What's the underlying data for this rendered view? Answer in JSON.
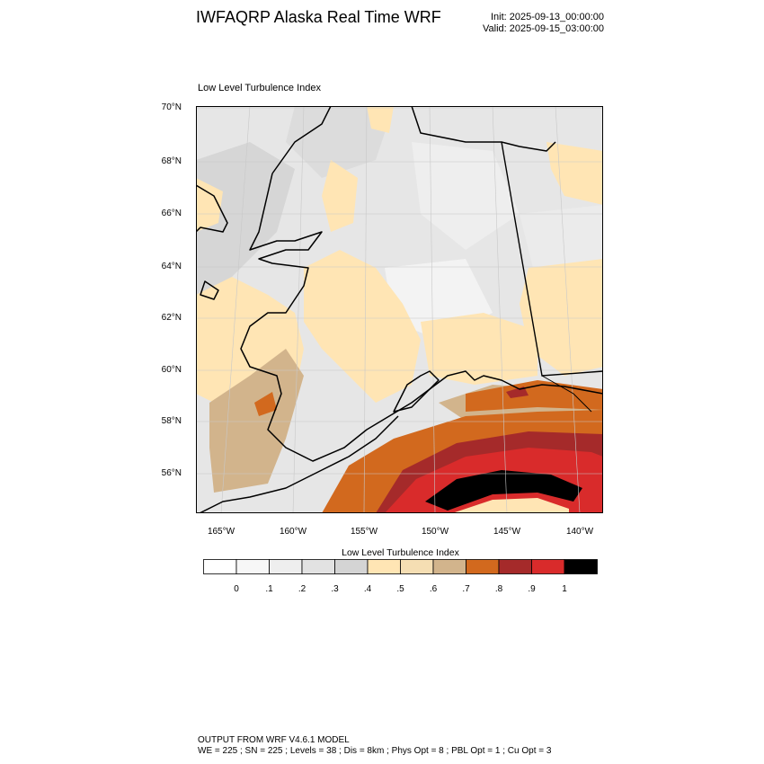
{
  "header": {
    "title": "IWFAQRP Alaska Real Time WRF",
    "init": "Init: 2025-09-13_00:00:00",
    "valid": "Valid: 2025-09-15_03:00:00"
  },
  "map": {
    "subtitle": "Low Level Turbulence Index",
    "lat_ticks": [
      "70°N",
      "68°N",
      "66°N",
      "64°N",
      "62°N",
      "60°N",
      "58°N",
      "56°N"
    ],
    "lon_ticks": [
      "165°W",
      "160°W",
      "155°W",
      "150°W",
      "145°W",
      "140°W"
    ]
  },
  "colorbar": {
    "title": "Low Level Turbulence Index",
    "colors": [
      "#ffffff",
      "#f7f7f7",
      "#eeeeee",
      "#e2e2e2",
      "#d4d4d4",
      "#ffe5b4",
      "#f5deb3",
      "#d2b48c",
      "#d2691e",
      "#a52a2a",
      "#d92b2b",
      "#000000"
    ],
    "labels": [
      "0",
      ".1",
      ".2",
      ".3",
      ".4",
      ".5",
      ".6",
      ".7",
      ".8",
      ".9",
      "1"
    ]
  },
  "footer": {
    "line1": "OUTPUT FROM WRF V4.6.1 MODEL",
    "line2": "WE = 225 ; SN = 225 ; Levels = 38 ; Dis = 8km ; Phys Opt = 8 ; PBL Opt = 1 ; Cu Opt = 3"
  }
}
